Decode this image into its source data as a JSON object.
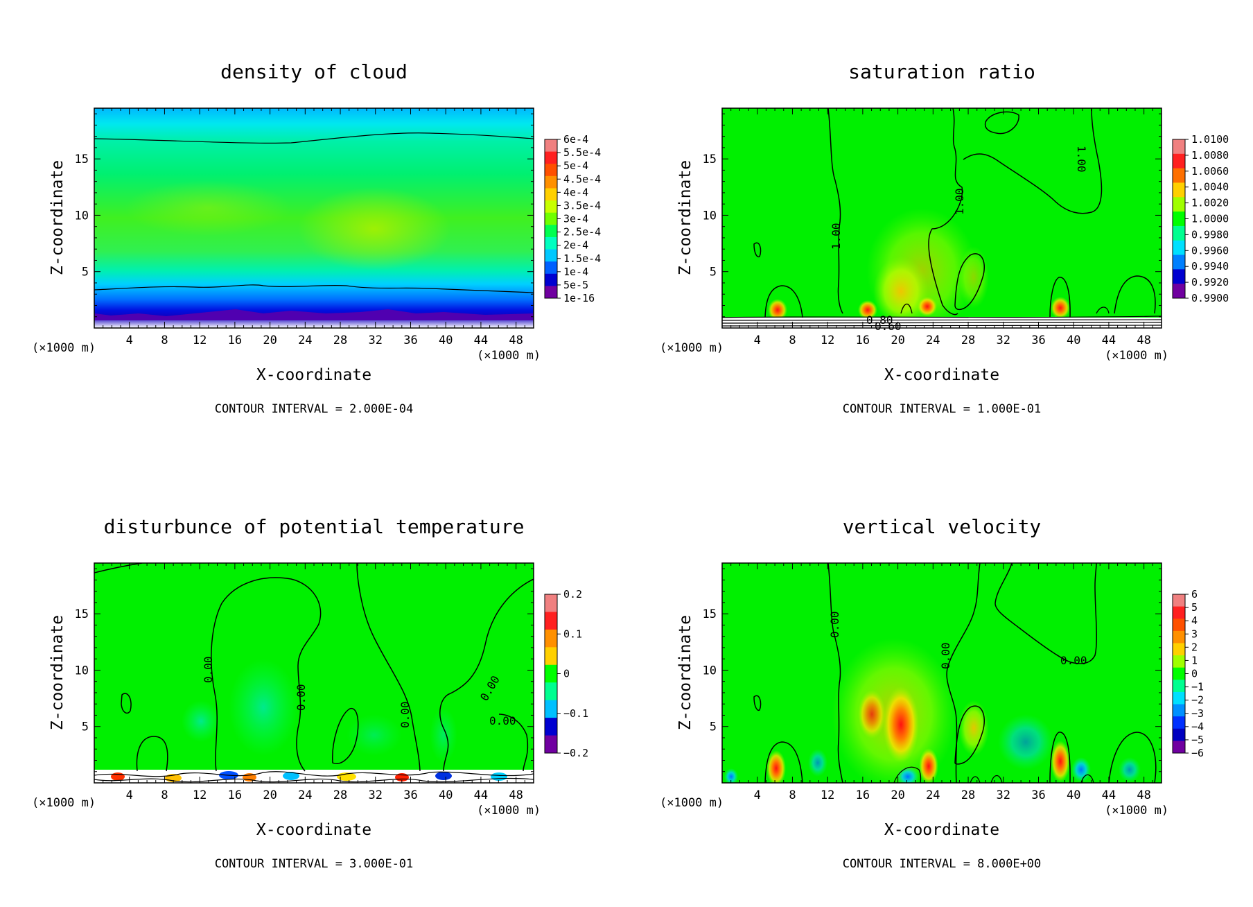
{
  "figure": {
    "panels": [
      {
        "id": "cloud",
        "title": "density of cloud",
        "xlabel": "X-coordinate",
        "ylabel": "Z-coordinate",
        "x_unit": "(×1000 m)",
        "z_unit": "(×1000 m)",
        "contour_note": "CONTOUR INTERVAL = 2.000E-04",
        "colorbar_labels": [
          "6e-4",
          "5.5e-4",
          "5e-4",
          "4.5e-4",
          "4e-4",
          "3.5e-4",
          "3e-4",
          "2.5e-4",
          "2e-4",
          "1.5e-4",
          "1e-4",
          "5e-5",
          "1e-16"
        ],
        "contour_labels": []
      },
      {
        "id": "saturation",
        "title": "saturation ratio",
        "xlabel": "X-coordinate",
        "ylabel": "Z-coordinate",
        "x_unit": "(×1000 m)",
        "z_unit": "(×1000 m)",
        "contour_note": "CONTOUR INTERVAL = 1.000E-01",
        "colorbar_labels": [
          "1.0100",
          "1.0080",
          "1.0060",
          "1.0040",
          "1.0020",
          "1.0000",
          "0.9980",
          "0.9960",
          "0.9940",
          "0.9920",
          "0.9900"
        ],
        "contour_labels": [
          "1.00",
          "1.00",
          "1.00",
          "0.80",
          "0.60"
        ]
      },
      {
        "id": "theta",
        "title": "disturbunce of potential temperature",
        "xlabel": "X-coordinate",
        "ylabel": "Z-coordinate",
        "x_unit": "(×1000 m)",
        "z_unit": "(×1000 m)",
        "contour_note": "CONTOUR INTERVAL = 3.000E-01",
        "colorbar_labels": [
          "0.2",
          "0.1",
          "0",
          "−0.1",
          "−0.2"
        ],
        "contour_labels": [
          "0.00",
          "0.00",
          "0.00",
          "0.00",
          "0.00"
        ]
      },
      {
        "id": "w",
        "title": "vertical velocity",
        "xlabel": "X-coordinate",
        "ylabel": "Z-coordinate",
        "x_unit": "(×1000 m)",
        "z_unit": "(×1000 m)",
        "contour_note": "CONTOUR INTERVAL = 8.000E+00",
        "colorbar_labels": [
          "6",
          "5",
          "4",
          "3",
          "2",
          "1",
          "0",
          "−1",
          "−2",
          "−3",
          "−4",
          "−5",
          "−6"
        ],
        "contour_labels": [
          "0.00",
          "0.00",
          "0.00"
        ]
      }
    ]
  },
  "chart_data": [
    {
      "type": "heatmap",
      "title": "density of cloud",
      "xlabel": "X-coordinate",
      "ylabel": "Z-coordinate",
      "x_ticks": [
        4,
        8,
        12,
        16,
        20,
        24,
        28,
        32,
        36,
        40,
        44,
        48
      ],
      "y_ticks": [
        5,
        10,
        15
      ],
      "xlim": [
        0,
        50
      ],
      "ylim": [
        0,
        19.5
      ],
      "colorbar": [
        "6e-4",
        "5.5e-4",
        "5e-4",
        "4.5e-4",
        "4e-4",
        "3.5e-4",
        "3e-4",
        "2.5e-4",
        "2e-4",
        "1.5e-4",
        "1e-4",
        "5e-5",
        "1e-16"
      ],
      "colors": [
        "#f08080",
        "#ff2020",
        "#ff5000",
        "#ff9000",
        "#ffd000",
        "#c8ff00",
        "#70ff00",
        "#00ff50",
        "#00ffc0",
        "#00c8ff",
        "#0060ff",
        "#0000d0",
        "#7000a0"
      ],
      "contour_interval": "2.000E-04"
    },
    {
      "type": "heatmap",
      "title": "saturation ratio",
      "xlabel": "X-coordinate",
      "ylabel": "Z-coordinate",
      "x_ticks": [
        4,
        8,
        12,
        16,
        20,
        24,
        28,
        32,
        36,
        40,
        44,
        48
      ],
      "y_ticks": [
        5,
        10,
        15
      ],
      "xlim": [
        0,
        50
      ],
      "ylim": [
        0,
        19.5
      ],
      "colorbar": [
        "1.0100",
        "1.0080",
        "1.0060",
        "1.0040",
        "1.0020",
        "1.0000",
        "0.9980",
        "0.9960",
        "0.9940",
        "0.9920",
        "0.9900"
      ],
      "colors": [
        "#f08080",
        "#ff2020",
        "#ff7000",
        "#ffd000",
        "#a0ff00",
        "#00ff00",
        "#00ff90",
        "#00e0ff",
        "#0080ff",
        "#0000d0",
        "#7000a0"
      ],
      "contour_labels": [
        "1.00",
        "1.00",
        "1.00",
        "0.80",
        "0.60"
      ],
      "contour_interval": "1.000E-01"
    },
    {
      "type": "heatmap",
      "title": "disturbunce of potential temperature",
      "xlabel": "X-coordinate",
      "ylabel": "Z-coordinate",
      "x_ticks": [
        4,
        8,
        12,
        16,
        20,
        24,
        28,
        32,
        36,
        40,
        44,
        48
      ],
      "y_ticks": [
        5,
        10,
        15
      ],
      "xlim": [
        0,
        50
      ],
      "ylim": [
        0,
        19.5
      ],
      "colorbar": [
        "0.2",
        "0.1",
        "0",
        "−0.1",
        "−0.2"
      ],
      "colors": [
        "#f08080",
        "#ff2020",
        "#ff9000",
        "#ffd000",
        "#00ff00",
        "#00ff90",
        "#00c0ff",
        "#0000d0",
        "#7000a0"
      ],
      "contour_labels": [
        "0.00",
        "0.00",
        "0.00",
        "0.00",
        "0.00"
      ],
      "contour_interval": "3.000E-01"
    },
    {
      "type": "heatmap",
      "title": "vertical velocity",
      "xlabel": "X-coordinate",
      "ylabel": "Z-coordinate",
      "x_ticks": [
        4,
        8,
        12,
        16,
        20,
        24,
        28,
        32,
        36,
        40,
        44,
        48
      ],
      "y_ticks": [
        5,
        10,
        15
      ],
      "xlim": [
        0,
        50
      ],
      "ylim": [
        0,
        19.5
      ],
      "colorbar": [
        "6",
        "5",
        "4",
        "3",
        "2",
        "1",
        "0",
        "−1",
        "−2",
        "−3",
        "−4",
        "−5",
        "−6"
      ],
      "colors": [
        "#f08080",
        "#ff2020",
        "#ff5000",
        "#ff9000",
        "#ffd000",
        "#a0ff00",
        "#00ff00",
        "#00ff90",
        "#00e0ff",
        "#0090ff",
        "#0030ff",
        "#0000c0",
        "#7000a0"
      ],
      "contour_labels": [
        "0.00",
        "0.00",
        "0.00"
      ],
      "contour_interval": "8.000E+00"
    }
  ]
}
